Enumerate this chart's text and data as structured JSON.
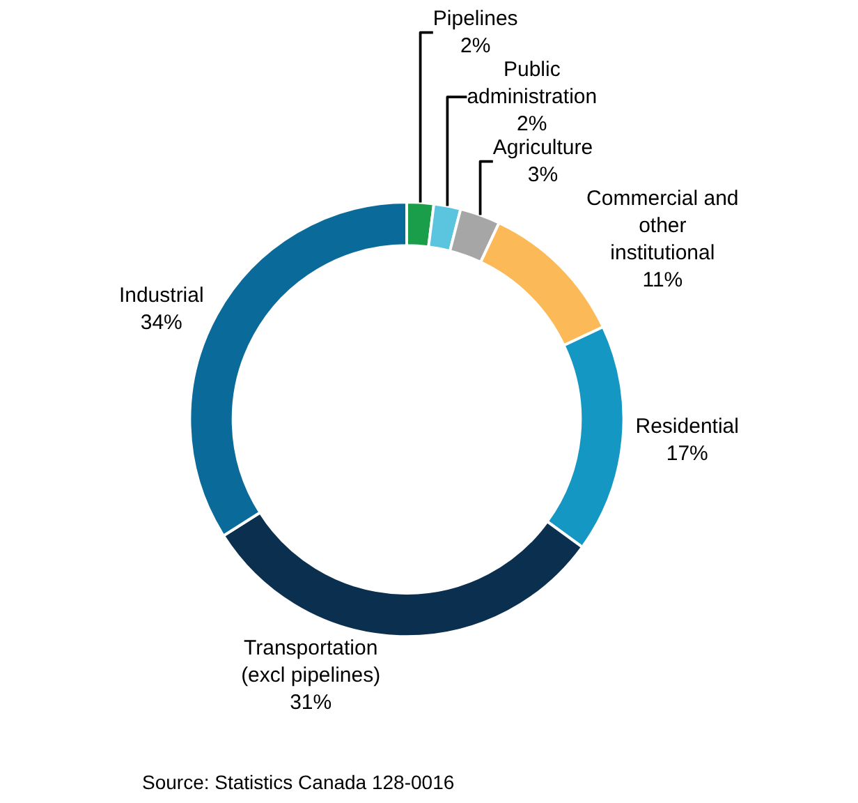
{
  "chart_data": {
    "type": "donut",
    "categories": [
      "Pipelines",
      "Public administration",
      "Agriculture",
      "Commercial and other institutional",
      "Residential",
      "Transportation (excl pipelines)",
      "Industrial"
    ],
    "values": [
      2,
      2,
      3,
      11,
      17,
      31,
      34
    ],
    "value_labels": [
      "2%",
      "2%",
      "3%",
      "11%",
      "17%",
      "31%",
      "34%"
    ],
    "colors": [
      "#1a9e4a",
      "#5bc5e0",
      "#a6a6a6",
      "#fbb957",
      "#1597c4",
      "#0b2f4e",
      "#0a6a9a"
    ],
    "annotations": [
      "Source: Statistics Canada 128-0016"
    ],
    "legend": false
  }
}
